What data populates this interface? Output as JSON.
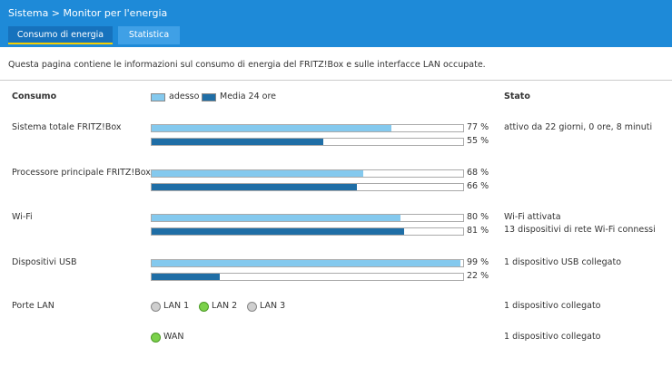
{
  "header": {
    "breadcrumb": "Sistema > Monitor per l'energia",
    "tabs": [
      "Consumo di energia",
      "Statistica"
    ]
  },
  "description": "Questa pagina contiene le informazioni sul consumo di energia del FRITZ!Box e sulle interfacce LAN occupate.",
  "table": {
    "columns": [
      "Consumo",
      "Stato"
    ],
    "legend": [
      {
        "name": "adesso",
        "color": "#84c9ee"
      },
      {
        "name": "Media 24 ore",
        "color": "#1f6ea6"
      }
    ],
    "rows": [
      {
        "label": "Sistema totale FRITZ!Box",
        "bars": [
          {
            "value": 77,
            "label": "77 %"
          },
          {
            "value": 55,
            "label": "55 %"
          }
        ],
        "status": [
          "attivo da 22 giorni, 0 ore, 8 minuti"
        ]
      },
      {
        "label": "Processore principale FRITZ!Box",
        "bars": [
          {
            "value": 68,
            "label": "68 %"
          },
          {
            "value": 66,
            "label": "66 %"
          }
        ],
        "status": []
      },
      {
        "label": "Wi-Fi",
        "bars": [
          {
            "value": 80,
            "label": "80 %"
          },
          {
            "value": 81,
            "label": "81 %"
          }
        ],
        "status": [
          "Wi-Fi attivata",
          "13 dispositivi di rete Wi-Fi connessi"
        ]
      },
      {
        "label": "Dispositivi USB",
        "bars": [
          {
            "value": 99,
            "label": "99 %"
          },
          {
            "value": 22,
            "label": "22 %"
          }
        ],
        "status": [
          "1 dispositivo USB collegato"
        ]
      }
    ]
  },
  "ports": {
    "lan": {
      "label": "Porte LAN",
      "items": [
        {
          "name": "LAN 1",
          "active": false
        },
        {
          "name": "LAN 2",
          "active": true
        },
        {
          "name": "LAN 3",
          "active": false
        }
      ],
      "status": "1 dispositivo collegato"
    },
    "wan": {
      "items": [
        {
          "name": "WAN",
          "active": true
        }
      ],
      "status": "1 dispositivo collegato"
    }
  }
}
